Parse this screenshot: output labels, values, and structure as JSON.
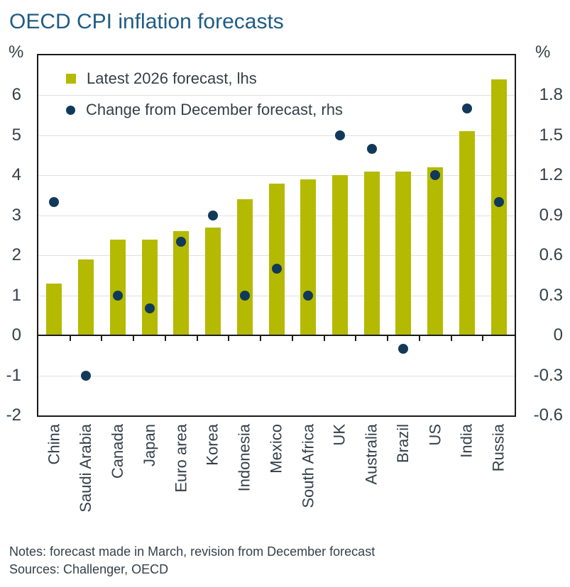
{
  "title": "OECD CPI inflation forecasts",
  "left_axis_unit": "%",
  "right_axis_unit": "%",
  "legend": [
    {
      "label": "Latest 2026 forecast, lhs",
      "marker": "square"
    },
    {
      "label": "Change from December forecast, rhs",
      "marker": "circle"
    }
  ],
  "notes": "Notes: forecast made in March, revision from December forecast",
  "sources": "Sources: Challenger, OECD",
  "colors": {
    "title": "#1f5c85",
    "text": "#343f48",
    "bar": "#b4ba00",
    "dot": "#11395a",
    "gridline": "#e0e0e0",
    "frame": "#1a1a1a"
  },
  "chart_data": {
    "type": "bar",
    "subtype": "bar-and-scatter-dual-axis",
    "categories": [
      "China",
      "Saudi Arabia",
      "Canada",
      "Japan",
      "Euro area",
      "Korea",
      "Indonesia",
      "Mexico",
      "South Africa",
      "UK",
      "Australia",
      "Brazil",
      "US",
      "India",
      "Russia"
    ],
    "series": [
      {
        "name": "Latest 2026 forecast, lhs",
        "type": "bar",
        "axis": "left",
        "values": [
          1.3,
          1.9,
          2.4,
          2.4,
          2.6,
          2.7,
          3.4,
          3.8,
          3.9,
          4.0,
          4.1,
          4.1,
          4.2,
          5.1,
          6.4
        ]
      },
      {
        "name": "Change from December forecast, rhs",
        "type": "scatter",
        "axis": "right",
        "values": [
          1.0,
          -0.3,
          0.3,
          0.2,
          0.7,
          0.9,
          0.3,
          0.5,
          0.3,
          1.5,
          1.4,
          -0.1,
          1.2,
          1.7,
          1.0
        ]
      }
    ],
    "left_axis": {
      "label": "%",
      "min": -2,
      "max": 7,
      "ticks": [
        6,
        5,
        4,
        3,
        2,
        1,
        0,
        -1,
        -2
      ]
    },
    "right_axis": {
      "label": "%",
      "min": -0.6,
      "max": 2.1,
      "ticks": [
        1.8,
        1.5,
        1.2,
        0.9,
        0.6,
        0.3,
        0,
        -0.3,
        -0.6
      ]
    },
    "grid": true,
    "legend_position": "top-left-inside"
  }
}
